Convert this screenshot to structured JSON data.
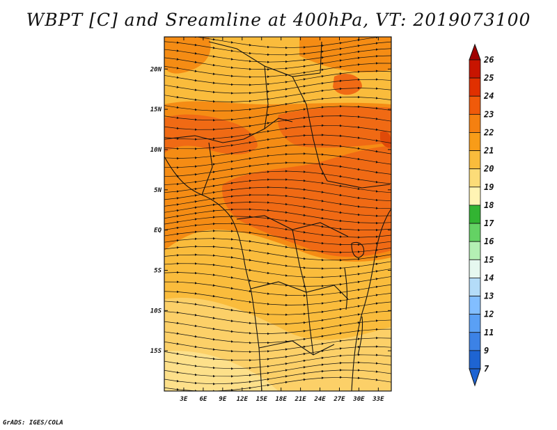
{
  "title": "WBPT [C] and Sreamline at 400hPa, VT: 2019073100",
  "credit": "GrADS: IGES/COLA",
  "map": {
    "lon_range": [
      0,
      35
    ],
    "lat_range": [
      -20,
      24
    ],
    "lon_ticks": [
      3,
      6,
      9,
      12,
      15,
      18,
      21,
      24,
      27,
      30,
      33
    ],
    "lon_tick_labels": [
      "3E",
      "6E",
      "9E",
      "12E",
      "15E",
      "18E",
      "21E",
      "24E",
      "27E",
      "30E",
      "33E"
    ],
    "lat_ticks": [
      20,
      15,
      10,
      5,
      0,
      -5,
      -10,
      -15
    ],
    "lat_tick_labels": [
      "20N",
      "15N",
      "10N",
      "5N",
      "EQ",
      "5S",
      "10S",
      "15S"
    ]
  },
  "colorbar": {
    "labels": [
      "26",
      "25",
      "24",
      "23",
      "22",
      "21",
      "20",
      "19",
      "18",
      "17",
      "16",
      "15",
      "14",
      "13",
      "12",
      "11",
      "9",
      "7"
    ],
    "colors": [
      "#a00000",
      "#c81400",
      "#e03000",
      "#f05a0a",
      "#f58010",
      "#f89c18",
      "#fabc3c",
      "#fcdc78",
      "#fff4b4",
      "#32b432",
      "#64d264",
      "#b4f0b4",
      "#e6f8f0",
      "#b4dcf8",
      "#82beff",
      "#5aa0f5",
      "#3c82e6",
      "#1e64d2"
    ]
  }
}
